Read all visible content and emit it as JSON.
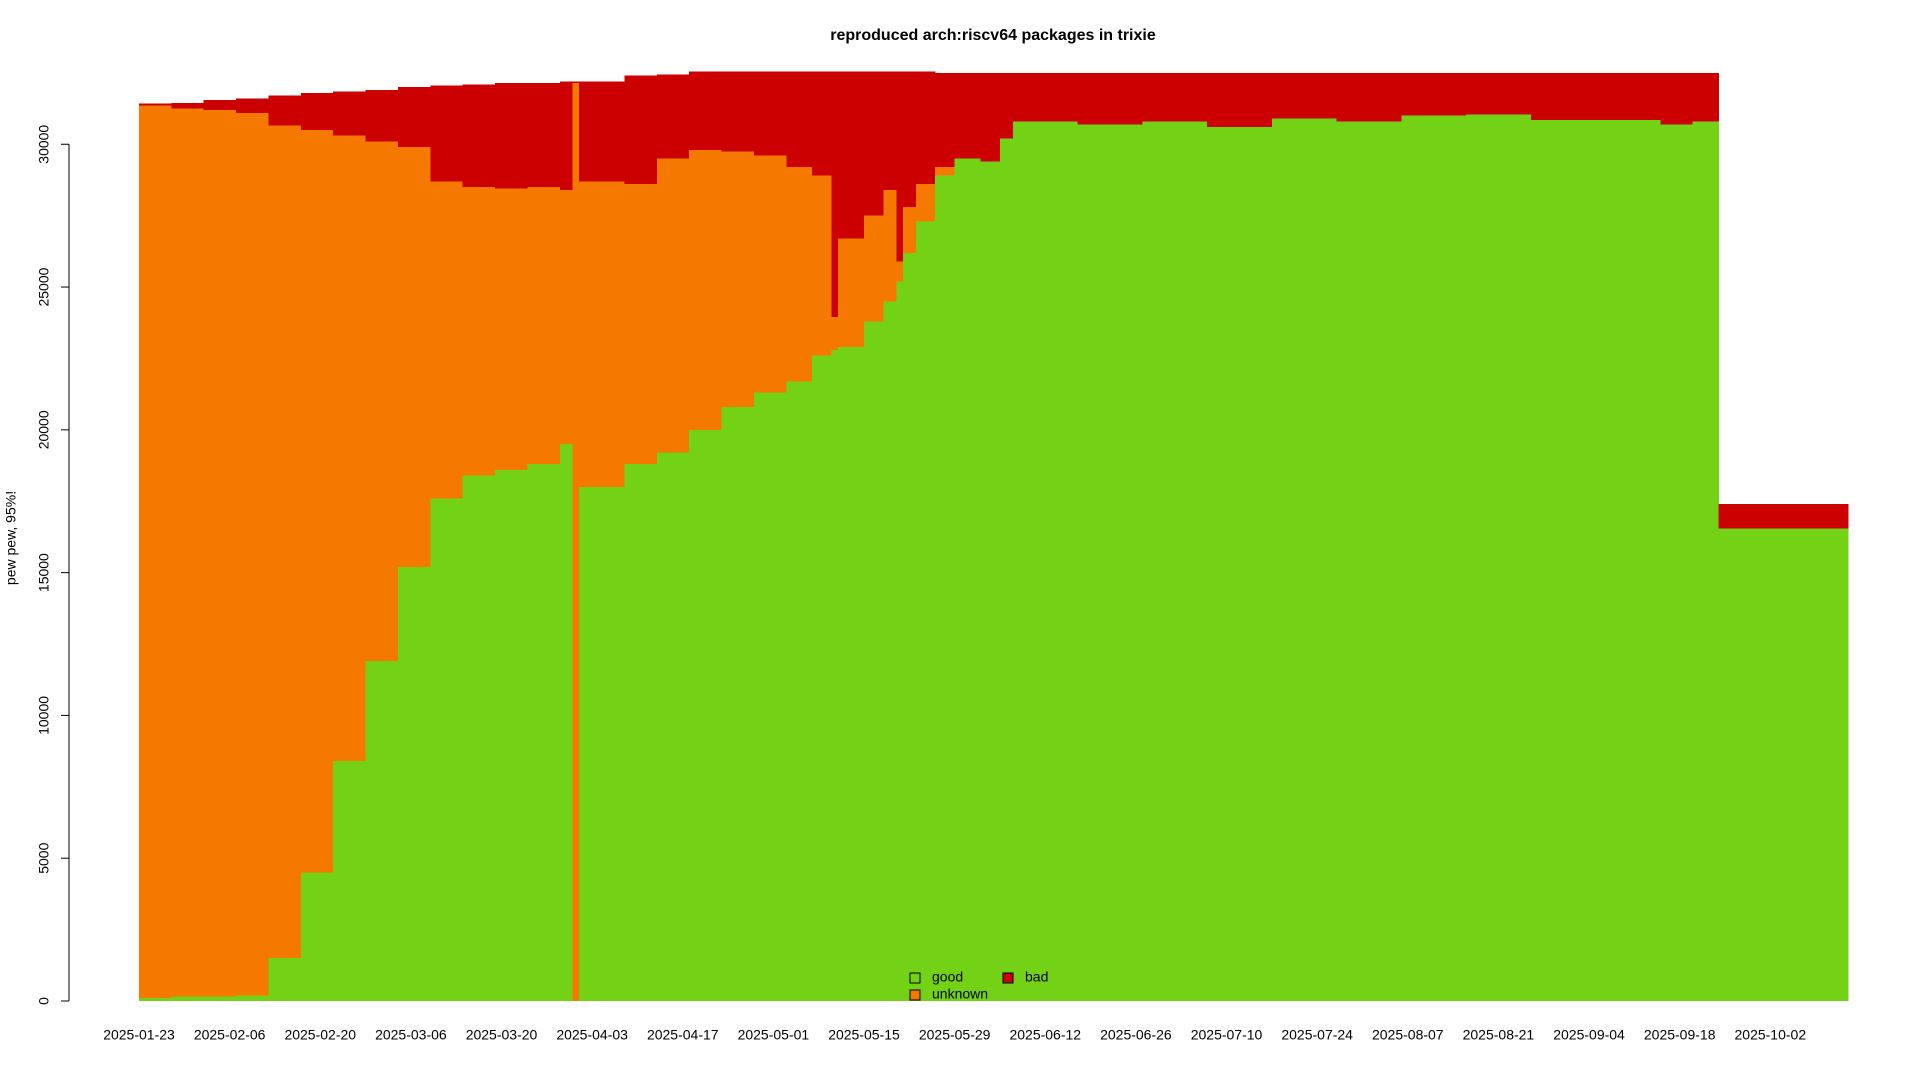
{
  "chart_data": {
    "type": "stacked-step",
    "title": "reproduced arch:riscv64 packages in trixie",
    "y_label": "pew pew, 95%!",
    "x": [
      "2025-01-23",
      "2025-01-28",
      "2025-02-02",
      "2025-02-07",
      "2025-02-12",
      "2025-02-17",
      "2025-02-22",
      "2025-02-27",
      "2025-03-04",
      "2025-03-09",
      "2025-03-14",
      "2025-03-19",
      "2025-03-24",
      "2025-03-29",
      "2025-03-31",
      "2025-04-01",
      "2025-04-08",
      "2025-04-13",
      "2025-04-18",
      "2025-04-23",
      "2025-04-28",
      "2025-05-03",
      "2025-05-07",
      "2025-05-10",
      "2025-05-11",
      "2025-05-15",
      "2025-05-18",
      "2025-05-20",
      "2025-05-21",
      "2025-05-23",
      "2025-05-26",
      "2025-05-29",
      "2025-06-02",
      "2025-06-05",
      "2025-06-07",
      "2025-06-17",
      "2025-06-27",
      "2025-07-07",
      "2025-07-17",
      "2025-07-27",
      "2025-08-06",
      "2025-08-16",
      "2025-08-26",
      "2025-09-05",
      "2025-09-15",
      "2025-09-20",
      "2025-09-24"
    ],
    "series": [
      {
        "name": "good",
        "color": "#73d216",
        "values": [
          100,
          150,
          150,
          200,
          1500,
          4500,
          8400,
          11900,
          15200,
          17600,
          18400,
          18600,
          18800,
          19500,
          0,
          18000,
          18800,
          19200,
          20000,
          20800,
          21300,
          21700,
          22600,
          22800,
          22900,
          23800,
          24500,
          25200,
          26200,
          27300,
          28900,
          29500,
          29400,
          30200,
          30800,
          30700,
          30800,
          30600,
          30900,
          30800,
          31000,
          31050,
          30850,
          30850,
          30700,
          30800,
          16550
        ]
      },
      {
        "name": "unknown",
        "color": "#f57900",
        "values": [
          31250,
          31100,
          31050,
          30900,
          29150,
          26000,
          21900,
          18200,
          14700,
          11100,
          10100,
          9850,
          9700,
          8900,
          32150,
          10700,
          9800,
          10300,
          9800,
          8950,
          8300,
          7500,
          6300,
          1150,
          3800,
          3700,
          3900,
          700,
          1600,
          1300,
          300,
          0,
          0,
          0,
          0,
          0,
          0,
          0,
          0,
          0,
          0,
          0,
          0,
          0,
          0,
          0,
          0
        ]
      },
      {
        "name": "bad",
        "color": "#cc0000",
        "values": [
          70,
          200,
          350,
          500,
          1050,
          1300,
          1550,
          1800,
          2100,
          3350,
          3600,
          3700,
          3650,
          3800,
          50,
          3500,
          3800,
          2950,
          2750,
          2800,
          2950,
          3350,
          3650,
          8600,
          5850,
          5050,
          4150,
          6650,
          4750,
          3950,
          3300,
          3000,
          3100,
          2300,
          1700,
          1800,
          1700,
          1900,
          1600,
          1700,
          1500,
          1450,
          1650,
          1650,
          1800,
          1700,
          850
        ]
      }
    ],
    "xlim": [
      "2025-01-23",
      "2025-10-14"
    ],
    "xticks": [
      "2025-01-23",
      "2025-02-06",
      "2025-02-20",
      "2025-03-06",
      "2025-03-20",
      "2025-04-03",
      "2025-04-17",
      "2025-05-01",
      "2025-05-15",
      "2025-05-29",
      "2025-06-12",
      "2025-06-26",
      "2025-07-10",
      "2025-07-24",
      "2025-08-07",
      "2025-08-21",
      "2025-09-04",
      "2025-09-18",
      "2025-10-02"
    ],
    "ylim": [
      0,
      32600
    ],
    "yticks": [
      0,
      5000,
      10000,
      15000,
      20000,
      25000,
      30000
    ],
    "legend": "bottom"
  }
}
